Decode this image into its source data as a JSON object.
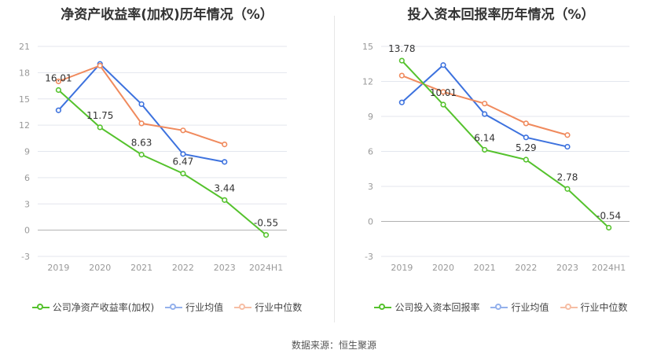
{
  "colors": {
    "company": "#55c22d",
    "average": "#3d72de",
    "median": "#f08a5d",
    "grid": "#e3e6ee",
    "axis": "#999999"
  },
  "source_label": "数据来源：恒生聚源",
  "chart_data": [
    {
      "type": "line",
      "title": "净资产收益率(加权)历年情况（%）",
      "categories": [
        "2019",
        "2020",
        "2021",
        "2022",
        "2023",
        "2024H1"
      ],
      "yticks": [
        "21",
        "18",
        "15",
        "12",
        "9",
        "6",
        "3",
        "0",
        "-3"
      ],
      "ylim": [
        -3,
        21
      ],
      "grid": true,
      "legend_position": "bottom",
      "series": [
        {
          "key": "company",
          "name": "公司净资产收益率(加权)",
          "values": [
            16.01,
            11.75,
            8.63,
            6.47,
            3.44,
            -0.55
          ],
          "labels": [
            "16.01",
            "11.75",
            "8.63",
            "6.47",
            "3.44",
            "-0.55"
          ]
        },
        {
          "key": "average",
          "name": "行业均值",
          "values": [
            13.7,
            19.0,
            14.4,
            8.7,
            7.8,
            null
          ]
        },
        {
          "key": "median",
          "name": "行业中位数",
          "values": [
            17.0,
            18.8,
            12.2,
            11.4,
            9.8,
            null
          ]
        }
      ]
    },
    {
      "type": "line",
      "title": "投入资本回报率历年情况（%）",
      "categories": [
        "2019",
        "2020",
        "2021",
        "2022",
        "2023",
        "2024H1"
      ],
      "yticks": [
        "15",
        "12",
        "9",
        "6",
        "3",
        "0",
        "-3"
      ],
      "ylim": [
        -3,
        15
      ],
      "grid": true,
      "legend_position": "bottom",
      "series": [
        {
          "key": "company",
          "name": "公司投入资本回报率",
          "values": [
            13.78,
            10.01,
            6.14,
            5.29,
            2.78,
            -0.54
          ],
          "labels": [
            "13.78",
            "10.01",
            "6.14",
            "5.29",
            "2.78",
            "-0.54"
          ]
        },
        {
          "key": "average",
          "name": "行业均值",
          "values": [
            10.2,
            13.4,
            9.2,
            7.2,
            6.4,
            null
          ]
        },
        {
          "key": "median",
          "name": "行业中位数",
          "values": [
            12.5,
            11.1,
            10.1,
            8.4,
            7.4,
            null
          ]
        }
      ]
    }
  ]
}
